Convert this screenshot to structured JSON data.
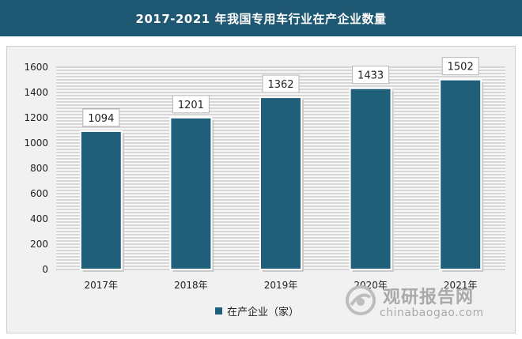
{
  "title": "2017-2021 年我国专用车行业在产企业数量",
  "chart_data": {
    "type": "bar",
    "categories": [
      "2017年",
      "2018年",
      "2019年",
      "2020年",
      "2021年"
    ],
    "series": [
      {
        "name": "在产企业（家）",
        "values": [
          1094,
          1201,
          1362,
          1433,
          1502
        ]
      }
    ],
    "ylim": [
      0,
      1600
    ],
    "yticks": [
      0,
      200,
      400,
      600,
      800,
      1000,
      1200,
      1400,
      1600
    ],
    "grid": true,
    "legend_position": "bottom",
    "colors": {
      "bar": "#1f5f7a",
      "bar_border": "#ffffff",
      "grid": "#b7b7b7",
      "title_bg": "#1f5872"
    }
  },
  "legend": {
    "label": "在产企业（家）"
  },
  "watermark": {
    "cn": "观研报告网",
    "url": "chinabaogao.com"
  }
}
